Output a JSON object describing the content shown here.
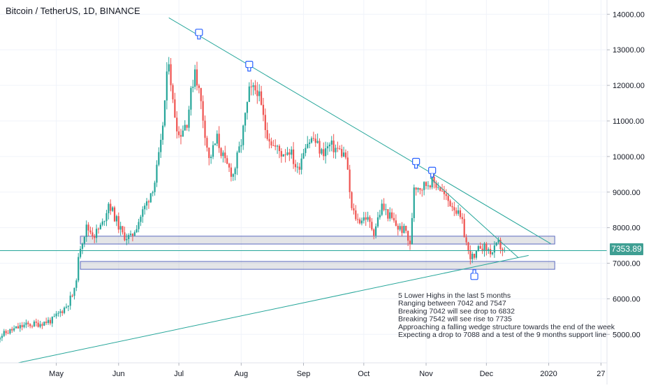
{
  "header": {
    "title": "Bitcoin / TetherUS, 1D, BINANCE"
  },
  "price_tag": {
    "value": "7353.89"
  },
  "notes": [
    "5 Lower Highs in the last 5 months",
    "Ranging between 7042 and 7547",
    "Breaking 7042 will see drop to 6832",
    "Breaking 7542 will see rise to 7735",
    "Approaching a falling wedge structure towards the end of the week",
    "Expecting a drop to 7088 and a test of the 9 months support line"
  ],
  "chart_data": {
    "type": "candlestick",
    "title": "Bitcoin / TetherUS, 1D, BINANCE",
    "xlabel": "",
    "ylabel": "",
    "x_ticks": [
      {
        "label": "May",
        "date": "2019-05-01"
      },
      {
        "label": "Jun",
        "date": "2019-06-01"
      },
      {
        "label": "Jul",
        "date": "2019-07-01"
      },
      {
        "label": "Aug",
        "date": "2019-08-01"
      },
      {
        "label": "Sep",
        "date": "2019-09-01"
      },
      {
        "label": "Oct",
        "date": "2019-10-01"
      },
      {
        "label": "Nov",
        "date": "2019-11-01"
      },
      {
        "label": "Dec",
        "date": "2019-12-01"
      },
      {
        "label": "2020",
        "date": "2020-01-01"
      },
      {
        "label": "27",
        "date": "2020-01-27"
      }
    ],
    "y_ticks": [
      "5000.00",
      "6000.00",
      "7000.00",
      "8000.00",
      "9000.00",
      "10000.00",
      "11000.00",
      "12000.00",
      "13000.00",
      "14000.00"
    ],
    "ylim": [
      4200,
      14400
    ],
    "xlim": [
      "2019-04-03",
      "2020-01-30"
    ],
    "colors": {
      "up": "#26a69a",
      "down": "#ef5350",
      "line": "#26a69a",
      "zone": "#5c6bc0"
    },
    "last_price": 7353.89,
    "price_series": [
      [
        "2019-04-01",
        4900
      ],
      [
        "2019-04-08",
        5100
      ],
      [
        "2019-04-15",
        5250
      ],
      [
        "2019-04-22",
        5300
      ],
      [
        "2019-04-29",
        5400
      ],
      [
        "2019-05-06",
        5800
      ],
      [
        "2019-05-10",
        6200
      ],
      [
        "2019-05-13",
        7500
      ],
      [
        "2019-05-16",
        8000
      ],
      [
        "2019-05-20",
        7800
      ],
      [
        "2019-05-24",
        8100
      ],
      [
        "2019-05-27",
        8700
      ],
      [
        "2019-06-03",
        7800
      ],
      [
        "2019-06-07",
        7700
      ],
      [
        "2019-06-11",
        8200
      ],
      [
        "2019-06-15",
        8700
      ],
      [
        "2019-06-19",
        9300
      ],
      [
        "2019-06-22",
        10300
      ],
      [
        "2019-06-26",
        12800
      ],
      [
        "2019-06-28",
        11500
      ],
      [
        "2019-07-01",
        10600
      ],
      [
        "2019-07-05",
        11000
      ],
      [
        "2019-07-09",
        12500
      ],
      [
        "2019-07-12",
        11500
      ],
      [
        "2019-07-16",
        9900
      ],
      [
        "2019-07-20",
        10500
      ],
      [
        "2019-07-24",
        9800
      ],
      [
        "2019-07-28",
        9500
      ],
      [
        "2019-08-01",
        10400
      ],
      [
        "2019-08-05",
        11800
      ],
      [
        "2019-08-09",
        11900
      ],
      [
        "2019-08-13",
        10800
      ],
      [
        "2019-08-17",
        10300
      ],
      [
        "2019-08-21",
        10100
      ],
      [
        "2019-08-25",
        10200
      ],
      [
        "2019-08-29",
        9600
      ],
      [
        "2019-09-02",
        10400
      ],
      [
        "2019-09-06",
        10500
      ],
      [
        "2019-09-10",
        10100
      ],
      [
        "2019-09-14",
        10300
      ],
      [
        "2019-09-18",
        10200
      ],
      [
        "2019-09-22",
        10000
      ],
      [
        "2019-09-25",
        8500
      ],
      [
        "2019-09-28",
        8200
      ],
      [
        "2019-10-02",
        8300
      ],
      [
        "2019-10-06",
        7900
      ],
      [
        "2019-10-10",
        8600
      ],
      [
        "2019-10-14",
        8300
      ],
      [
        "2019-10-18",
        8000
      ],
      [
        "2019-10-22",
        7900
      ],
      [
        "2019-10-24",
        7450
      ],
      [
        "2019-10-26",
        9200
      ],
      [
        "2019-10-30",
        9150
      ],
      [
        "2019-11-03",
        9300
      ],
      [
        "2019-11-07",
        9200
      ],
      [
        "2019-11-11",
        8800
      ],
      [
        "2019-11-15",
        8600
      ],
      [
        "2019-11-19",
        8100
      ],
      [
        "2019-11-22",
        7300
      ],
      [
        "2019-11-25",
        7100
      ],
      [
        "2019-11-28",
        7500
      ],
      [
        "2019-12-01",
        7400
      ],
      [
        "2019-12-04",
        7300
      ],
      [
        "2019-12-07",
        7550
      ],
      [
        "2019-12-10",
        7300
      ]
    ],
    "annotations": {
      "lines": [
        {
          "name": "descending-resistance-line",
          "points": [
            [
              "2019-06-26",
              13900
            ],
            [
              "2020-01-02",
              7550
            ]
          ]
        },
        {
          "name": "falling-wedge-upper-line",
          "points": [
            [
              "2019-11-03",
              9400
            ],
            [
              "2019-12-17",
              7150
            ]
          ]
        },
        {
          "name": "support-line",
          "points": [
            [
              "2019-04-12",
              4200
            ],
            [
              "2019-12-22",
              7220
            ]
          ]
        },
        {
          "name": "last-price-line",
          "points": [
            [
              "2019-04-03",
              7353.89
            ],
            [
              "2020-01-30",
              7353.89
            ]
          ]
        }
      ],
      "zones": [
        {
          "name": "upper-range-zone",
          "from": "2019-05-13",
          "to": "2020-01-04",
          "y1": 7540,
          "y2": 7760
        },
        {
          "name": "lower-range-zone",
          "from": "2019-05-13",
          "to": "2020-01-04",
          "y1": 6830,
          "y2": 7050
        }
      ],
      "markers": [
        {
          "name": "lower-high-marker-1",
          "date": "2019-07-11",
          "price": 13460,
          "direction": "down"
        },
        {
          "name": "lower-high-marker-2",
          "date": "2019-08-05",
          "price": 12560,
          "direction": "down"
        },
        {
          "name": "lower-high-marker-3",
          "date": "2019-10-27",
          "price": 9830,
          "direction": "down"
        },
        {
          "name": "lower-high-marker-4",
          "date": "2019-11-04",
          "price": 9580,
          "direction": "down"
        },
        {
          "name": "support-touch-marker",
          "date": "2019-11-25",
          "price": 6660,
          "direction": "up"
        }
      ]
    }
  }
}
